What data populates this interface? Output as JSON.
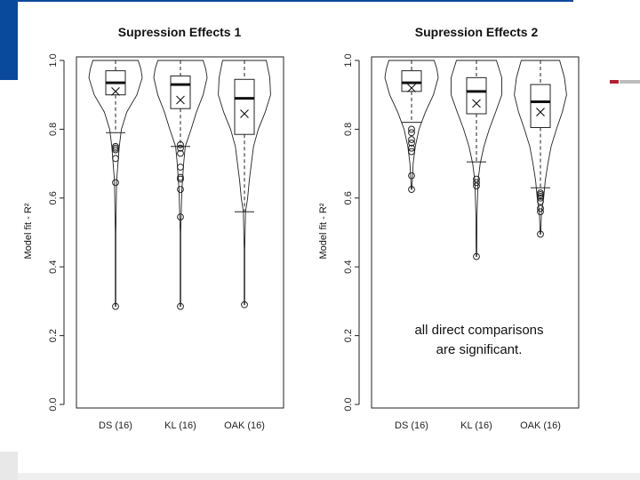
{
  "slide": {
    "accent_color": "#0a4a9c",
    "marker_color": "#b51f33",
    "annotation_lines": [
      "all direct comparisons",
      "are significant."
    ]
  },
  "chart_data": [
    {
      "type": "violin-box",
      "title": "Supression Effects 1",
      "ylabel": "Model fit - R²",
      "xlabel": "",
      "ylim": [
        0,
        1
      ],
      "yticks": [
        "0.0",
        "0.2",
        "0.4",
        "0.6",
        "0.8",
        "1.0"
      ],
      "grid": false,
      "categories": [
        "DS (16)",
        "KL (16)",
        "OAK (16)"
      ],
      "series": [
        {
          "q1": 0.9,
          "median": 0.935,
          "q3": 0.97,
          "mean": 0.91,
          "whisker_low": 0.79,
          "whisker_high": 1.0,
          "outliers": [
            0.75,
            0.745,
            0.74,
            0.715,
            0.645,
            0.285
          ],
          "violin": [
            [
              0.285,
              0.01
            ],
            [
              0.5,
              0.01
            ],
            [
              0.65,
              0.04
            ],
            [
              0.75,
              0.14
            ],
            [
              0.8,
              0.22
            ],
            [
              0.85,
              0.42
            ],
            [
              0.9,
              0.8
            ],
            [
              0.95,
              1.0
            ],
            [
              0.975,
              0.95
            ],
            [
              1.0,
              0.85
            ]
          ]
        },
        {
          "q1": 0.86,
          "median": 0.93,
          "q3": 0.955,
          "mean": 0.885,
          "whisker_low": 0.75,
          "whisker_high": 1.0,
          "outliers": [
            0.755,
            0.745,
            0.73,
            0.69,
            0.66,
            0.655,
            0.625,
            0.545,
            0.285
          ],
          "violin": [
            [
              0.285,
              0.01
            ],
            [
              0.5,
              0.01
            ],
            [
              0.62,
              0.05
            ],
            [
              0.7,
              0.12
            ],
            [
              0.75,
              0.18
            ],
            [
              0.8,
              0.4
            ],
            [
              0.85,
              0.6
            ],
            [
              0.9,
              0.85
            ],
            [
              0.95,
              1.0
            ],
            [
              0.975,
              0.95
            ],
            [
              1.0,
              0.85
            ]
          ]
        },
        {
          "q1": 0.785,
          "median": 0.89,
          "q3": 0.945,
          "mean": 0.845,
          "whisker_low": 0.56,
          "whisker_high": 1.0,
          "outliers": [
            0.29
          ],
          "violin": [
            [
              0.29,
              0.01
            ],
            [
              0.45,
              0.01
            ],
            [
              0.56,
              0.04
            ],
            [
              0.6,
              0.12
            ],
            [
              0.65,
              0.18
            ],
            [
              0.7,
              0.26
            ],
            [
              0.75,
              0.34
            ],
            [
              0.8,
              0.52
            ],
            [
              0.85,
              0.78
            ],
            [
              0.9,
              0.98
            ],
            [
              0.95,
              0.95
            ],
            [
              1.0,
              0.82
            ]
          ]
        }
      ]
    },
    {
      "type": "violin-box",
      "title": "Supression Effects 2",
      "ylabel": "Model fit - R²",
      "xlabel": "",
      "ylim": [
        0,
        1
      ],
      "yticks": [
        "0.0",
        "0.2",
        "0.4",
        "0.6",
        "0.8",
        "1.0"
      ],
      "grid": false,
      "categories": [
        "DS (16)",
        "KL (16)",
        "OAK (16)"
      ],
      "series": [
        {
          "q1": 0.91,
          "median": 0.935,
          "q3": 0.97,
          "mean": 0.92,
          "whisker_low": 0.82,
          "whisker_high": 1.0,
          "outliers": [
            0.8,
            0.79,
            0.77,
            0.76,
            0.745,
            0.735,
            0.665,
            0.625
          ],
          "violin": [
            [
              0.625,
              0.01
            ],
            [
              0.7,
              0.06
            ],
            [
              0.75,
              0.14
            ],
            [
              0.8,
              0.28
            ],
            [
              0.85,
              0.52
            ],
            [
              0.9,
              0.82
            ],
            [
              0.95,
              1.0
            ],
            [
              0.975,
              0.95
            ],
            [
              1.0,
              0.85
            ]
          ]
        },
        {
          "q1": 0.845,
          "median": 0.91,
          "q3": 0.95,
          "mean": 0.875,
          "whisker_low": 0.705,
          "whisker_high": 1.0,
          "outliers": [
            0.655,
            0.645,
            0.635,
            0.43
          ],
          "violin": [
            [
              0.43,
              0.01
            ],
            [
              0.55,
              0.02
            ],
            [
              0.65,
              0.06
            ],
            [
              0.7,
              0.14
            ],
            [
              0.75,
              0.28
            ],
            [
              0.8,
              0.48
            ],
            [
              0.85,
              0.72
            ],
            [
              0.9,
              0.95
            ],
            [
              0.95,
              0.95
            ],
            [
              1.0,
              0.75
            ]
          ]
        },
        {
          "q1": 0.805,
          "median": 0.88,
          "q3": 0.93,
          "mean": 0.85,
          "whisker_low": 0.63,
          "whisker_high": 1.0,
          "outliers": [
            0.615,
            0.61,
            0.605,
            0.6,
            0.59,
            0.57,
            0.56,
            0.495
          ],
          "violin": [
            [
              0.495,
              0.01
            ],
            [
              0.56,
              0.04
            ],
            [
              0.6,
              0.12
            ],
            [
              0.65,
              0.18
            ],
            [
              0.7,
              0.28
            ],
            [
              0.75,
              0.4
            ],
            [
              0.8,
              0.6
            ],
            [
              0.85,
              0.82
            ],
            [
              0.9,
              0.98
            ],
            [
              0.95,
              0.9
            ],
            [
              1.0,
              0.72
            ]
          ]
        }
      ]
    }
  ]
}
